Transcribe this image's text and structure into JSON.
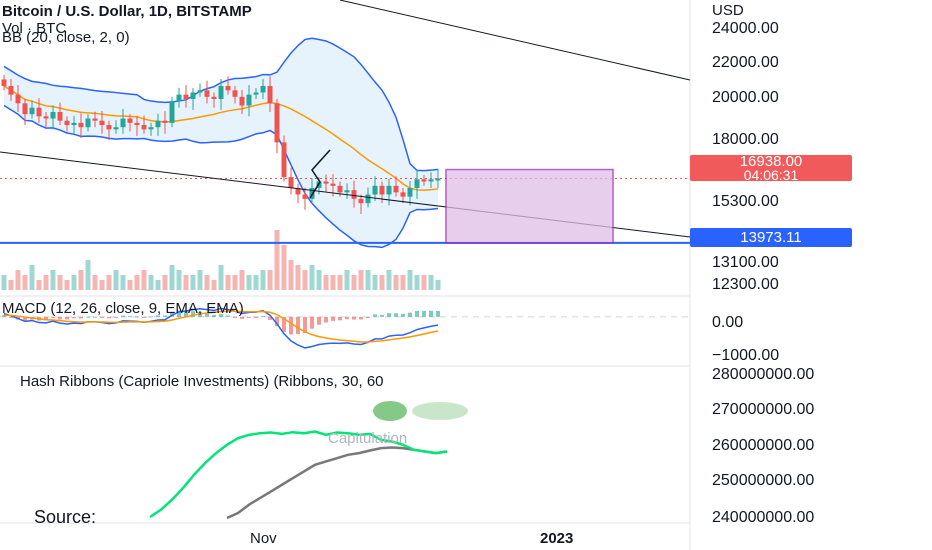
{
  "header": {
    "symbol": "Bitcoin / U.S. Dollar, 1D, BITSTAMP",
    "volume": "Vol · BTC",
    "bollinger": "BB (20, close, 2, 0)"
  },
  "price_axis": {
    "currency": "USD",
    "ticks": [
      "24000.00",
      "22000.00",
      "20000.00",
      "18000.00",
      "15300.00",
      "13100.00",
      "12300.00"
    ],
    "last_price": "16938.00",
    "countdown": "04:06:31",
    "line_level": "13973.11"
  },
  "macd": {
    "title": "MACD (12, 26, close, 9, EMA, EMA)",
    "ticks": [
      "0.00",
      "−1000.00"
    ]
  },
  "hash": {
    "title": "Hash Ribbons (Capriole Investments) (Ribbons, 30, 60",
    "annotation": "Capitulation",
    "source": "Source:",
    "ticks": [
      "280000000.00",
      "270000000.00",
      "260000000.00",
      "250000000.00",
      "240000000.00"
    ]
  },
  "time_axis": {
    "labels": [
      "Nov",
      "2023"
    ]
  },
  "colors": {
    "up": "#26a69a",
    "down": "#ef5350",
    "band": "#2962ff",
    "basis": "#ff9800",
    "box": "#9c27b0",
    "fast_ribbon": "#00e676",
    "slow_ribbon": "#787878"
  },
  "chart_data": [
    {
      "type": "candlestick",
      "title": "Bitcoin / U.S. Dollar, 1D, BITSTAMP",
      "ylabel": "USD",
      "ylim": [
        11800,
        24700
      ],
      "indicators": [
        "Bollinger Bands (20, close, 2, 0)",
        "Volume"
      ],
      "series": [
        {
          "name": "close",
          "values": [
            21200,
            20800,
            20400,
            19900,
            20200,
            19800,
            19700,
            20000,
            19600,
            19400,
            19500,
            19300,
            19700,
            19600,
            19400,
            19200,
            19300,
            19700,
            19500,
            19400,
            19200,
            19300,
            19600,
            19500,
            20500,
            20800,
            20600,
            20900,
            21000,
            20700,
            20600,
            21200,
            21000,
            20700,
            20300,
            20800,
            20900,
            21200,
            20400,
            18600,
            17000,
            16500,
            16200,
            16000,
            16500,
            16800,
            16700,
            16600,
            16300,
            16400,
            16000,
            15800,
            16200,
            16600,
            16200,
            16600,
            16300,
            16100,
            16500,
            16900,
            16800,
            16900,
            16938
          ]
        }
      ],
      "price_line": 16938,
      "horizontal_level": 13973.11
    },
    {
      "type": "line",
      "title": "MACD (12, 26, close, 9, EMA, EMA)",
      "ylim": [
        -1600,
        600
      ],
      "series": [
        {
          "name": "MACD",
          "values": [
            120,
            40,
            -60,
            -160,
            -130,
            -200,
            -210,
            -150,
            -220,
            -250,
            -220,
            -240,
            -170,
            -170,
            -200,
            -240,
            -210,
            -140,
            -150,
            -160,
            -190,
            -160,
            -110,
            -100,
            60,
            180,
            210,
            260,
            290,
            260,
            230,
            300,
            260,
            200,
            120,
            160,
            170,
            220,
            60,
            -250,
            -600,
            -850,
            -1000,
            -1100,
            -1050,
            -980,
            -950,
            -930,
            -940,
            -920,
            -960,
            -980,
            -900,
            -780,
            -780,
            -680,
            -650,
            -640,
            -560,
            -450,
            -390,
            -330,
            -290
          ]
        },
        {
          "name": "Signal",
          "values": [
            60,
            55,
            30,
            -10,
            -40,
            -70,
            -100,
            -110,
            -130,
            -160,
            -170,
            -185,
            -180,
            -178,
            -180,
            -190,
            -195,
            -185,
            -178,
            -175,
            -178,
            -175,
            -162,
            -150,
            -110,
            -50,
            0,
            60,
            110,
            140,
            160,
            190,
            205,
            205,
            190,
            185,
            182,
            190,
            165,
            80,
            -60,
            -230,
            -390,
            -530,
            -630,
            -700,
            -750,
            -790,
            -820,
            -840,
            -865,
            -890,
            -890,
            -870,
            -850,
            -815,
            -780,
            -750,
            -710,
            -660,
            -605,
            -550,
            -500
          ]
        }
      ]
    },
    {
      "type": "line",
      "title": "Hash Ribbons (Capriole Investments) (Ribbons, 30, 60",
      "ylim": [
        237000000,
        283000000
      ],
      "series": [
        {
          "name": "fast ribbon",
          "values": [
            238800000,
            241000000,
            244000000,
            247500000,
            251500000,
            255000000,
            258000000,
            260500000,
            262500000,
            263500000,
            264000000,
            264200000,
            263800000,
            264300000,
            264000000,
            264500000,
            263500000,
            264200000,
            264000000,
            263500000,
            263800000,
            262000000,
            261500000,
            260500000,
            259000000,
            258500000,
            258000000,
            258500000
          ]
        },
        {
          "name": "slow ribbon",
          "values": [
            null,
            null,
            null,
            null,
            null,
            null,
            null,
            238500000,
            240000000,
            242500000,
            244500000,
            246500000,
            248500000,
            250500000,
            252500000,
            254500000,
            255500000,
            256500000,
            257500000,
            258000000,
            258800000,
            259500000,
            259700000,
            259500000,
            259000000,
            258500000,
            258000000,
            258500000
          ]
        }
      ]
    }
  ]
}
